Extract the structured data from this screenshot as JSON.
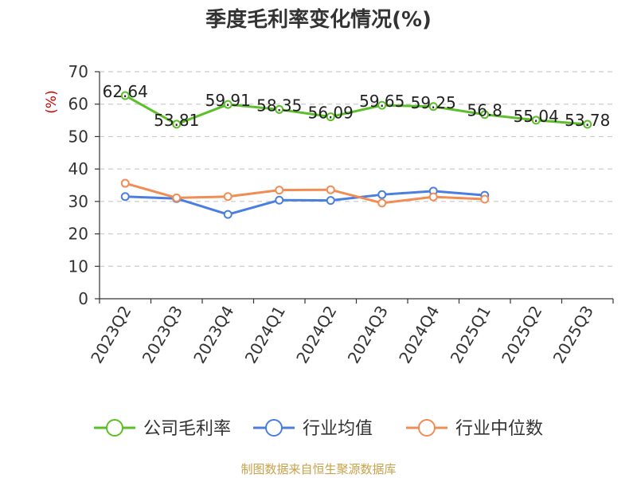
{
  "chart_data": {
    "type": "line",
    "title": "季度毛利率变化情况(%)",
    "ylabel": "(%)",
    "xlabel": "",
    "ylim": [
      0,
      70
    ],
    "yticks": [
      0,
      10,
      20,
      30,
      40,
      50,
      60,
      70
    ],
    "grid": true,
    "legend_position": "bottom",
    "categories": [
      "2023Q2",
      "2023Q3",
      "2023Q4",
      "2024Q1",
      "2024Q2",
      "2024Q3",
      "2024Q4",
      "2025Q1",
      "2025Q2",
      "2025Q3"
    ],
    "series": [
      {
        "name": "公司毛利率",
        "color": "#5cbf2a",
        "values": [
          62.64,
          53.81,
          59.91,
          58.35,
          56.09,
          59.65,
          59.25,
          56.8,
          55.04,
          53.78
        ],
        "labels": [
          "62.64",
          "53.81",
          "59.91",
          "58.35",
          "56.09",
          "59.65",
          "59.25",
          "56.8",
          "55.04",
          "53.78"
        ]
      },
      {
        "name": "行业均值",
        "color": "#4a7fe0",
        "values": [
          31.5,
          30.9,
          26.0,
          30.4,
          30.3,
          32.1,
          33.2,
          31.9,
          null,
          null
        ]
      },
      {
        "name": "行业中位数",
        "color": "#f28c55",
        "values": [
          35.6,
          31.1,
          31.5,
          33.5,
          33.6,
          29.5,
          31.4,
          30.7,
          null,
          null
        ]
      }
    ]
  },
  "footer": {
    "source": "制图数据来自恒生聚源数据库"
  }
}
